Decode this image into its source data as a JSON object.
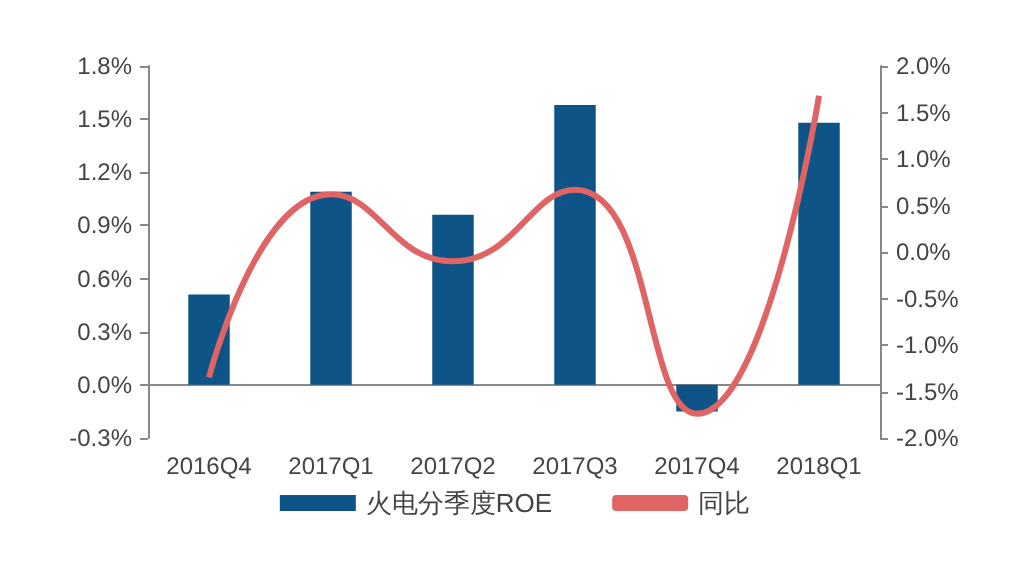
{
  "chart_data": {
    "type": "bar",
    "categories": [
      "2016Q4",
      "2017Q1",
      "2017Q2",
      "2017Q3",
      "2017Q4",
      "2018Q1"
    ],
    "series": [
      {
        "name": "火电分季度ROE",
        "color": "#0f5486",
        "values": [
          0.51,
          1.09,
          0.96,
          1.58,
          -0.15,
          1.48
        ]
      },
      {
        "name": "同比",
        "type": "line",
        "axis": "y2",
        "color": "#e06464",
        "values": [
          -1.35,
          0.62,
          -0.1,
          0.67,
          -1.74,
          1.68
        ]
      }
    ],
    "ylim": [
      -0.3,
      1.8
    ],
    "yticks": [
      {
        "value": -0.3,
        "label": "-0.3%"
      },
      {
        "value": 0,
        "label": "0.0%"
      },
      {
        "value": 0.3,
        "label": "0.3%"
      },
      {
        "value": 0.6,
        "label": "0.6%"
      },
      {
        "value": 0.9,
        "label": "0.9%"
      },
      {
        "value": 1.2,
        "label": "1.2%"
      },
      {
        "value": 1.5,
        "label": "1.5%"
      },
      {
        "value": 1.8,
        "label": "1.8%"
      }
    ],
    "y2lim": [
      -2.0,
      2.0
    ],
    "y2ticks": [
      {
        "value": -2.0,
        "label": "-2.0%"
      },
      {
        "value": -1.5,
        "label": "-1.5%"
      },
      {
        "value": -1.0,
        "label": "-1.0%"
      },
      {
        "value": -0.5,
        "label": "-0.5%"
      },
      {
        "value": 0,
        "label": "0.0%"
      },
      {
        "value": 0.5,
        "label": "0.5%"
      },
      {
        "value": 1.0,
        "label": "1.0%"
      },
      {
        "value": 1.5,
        "label": "1.5%"
      },
      {
        "value": 2.0,
        "label": "2.0%"
      }
    ],
    "legend": "bottom",
    "marker": "none"
  }
}
